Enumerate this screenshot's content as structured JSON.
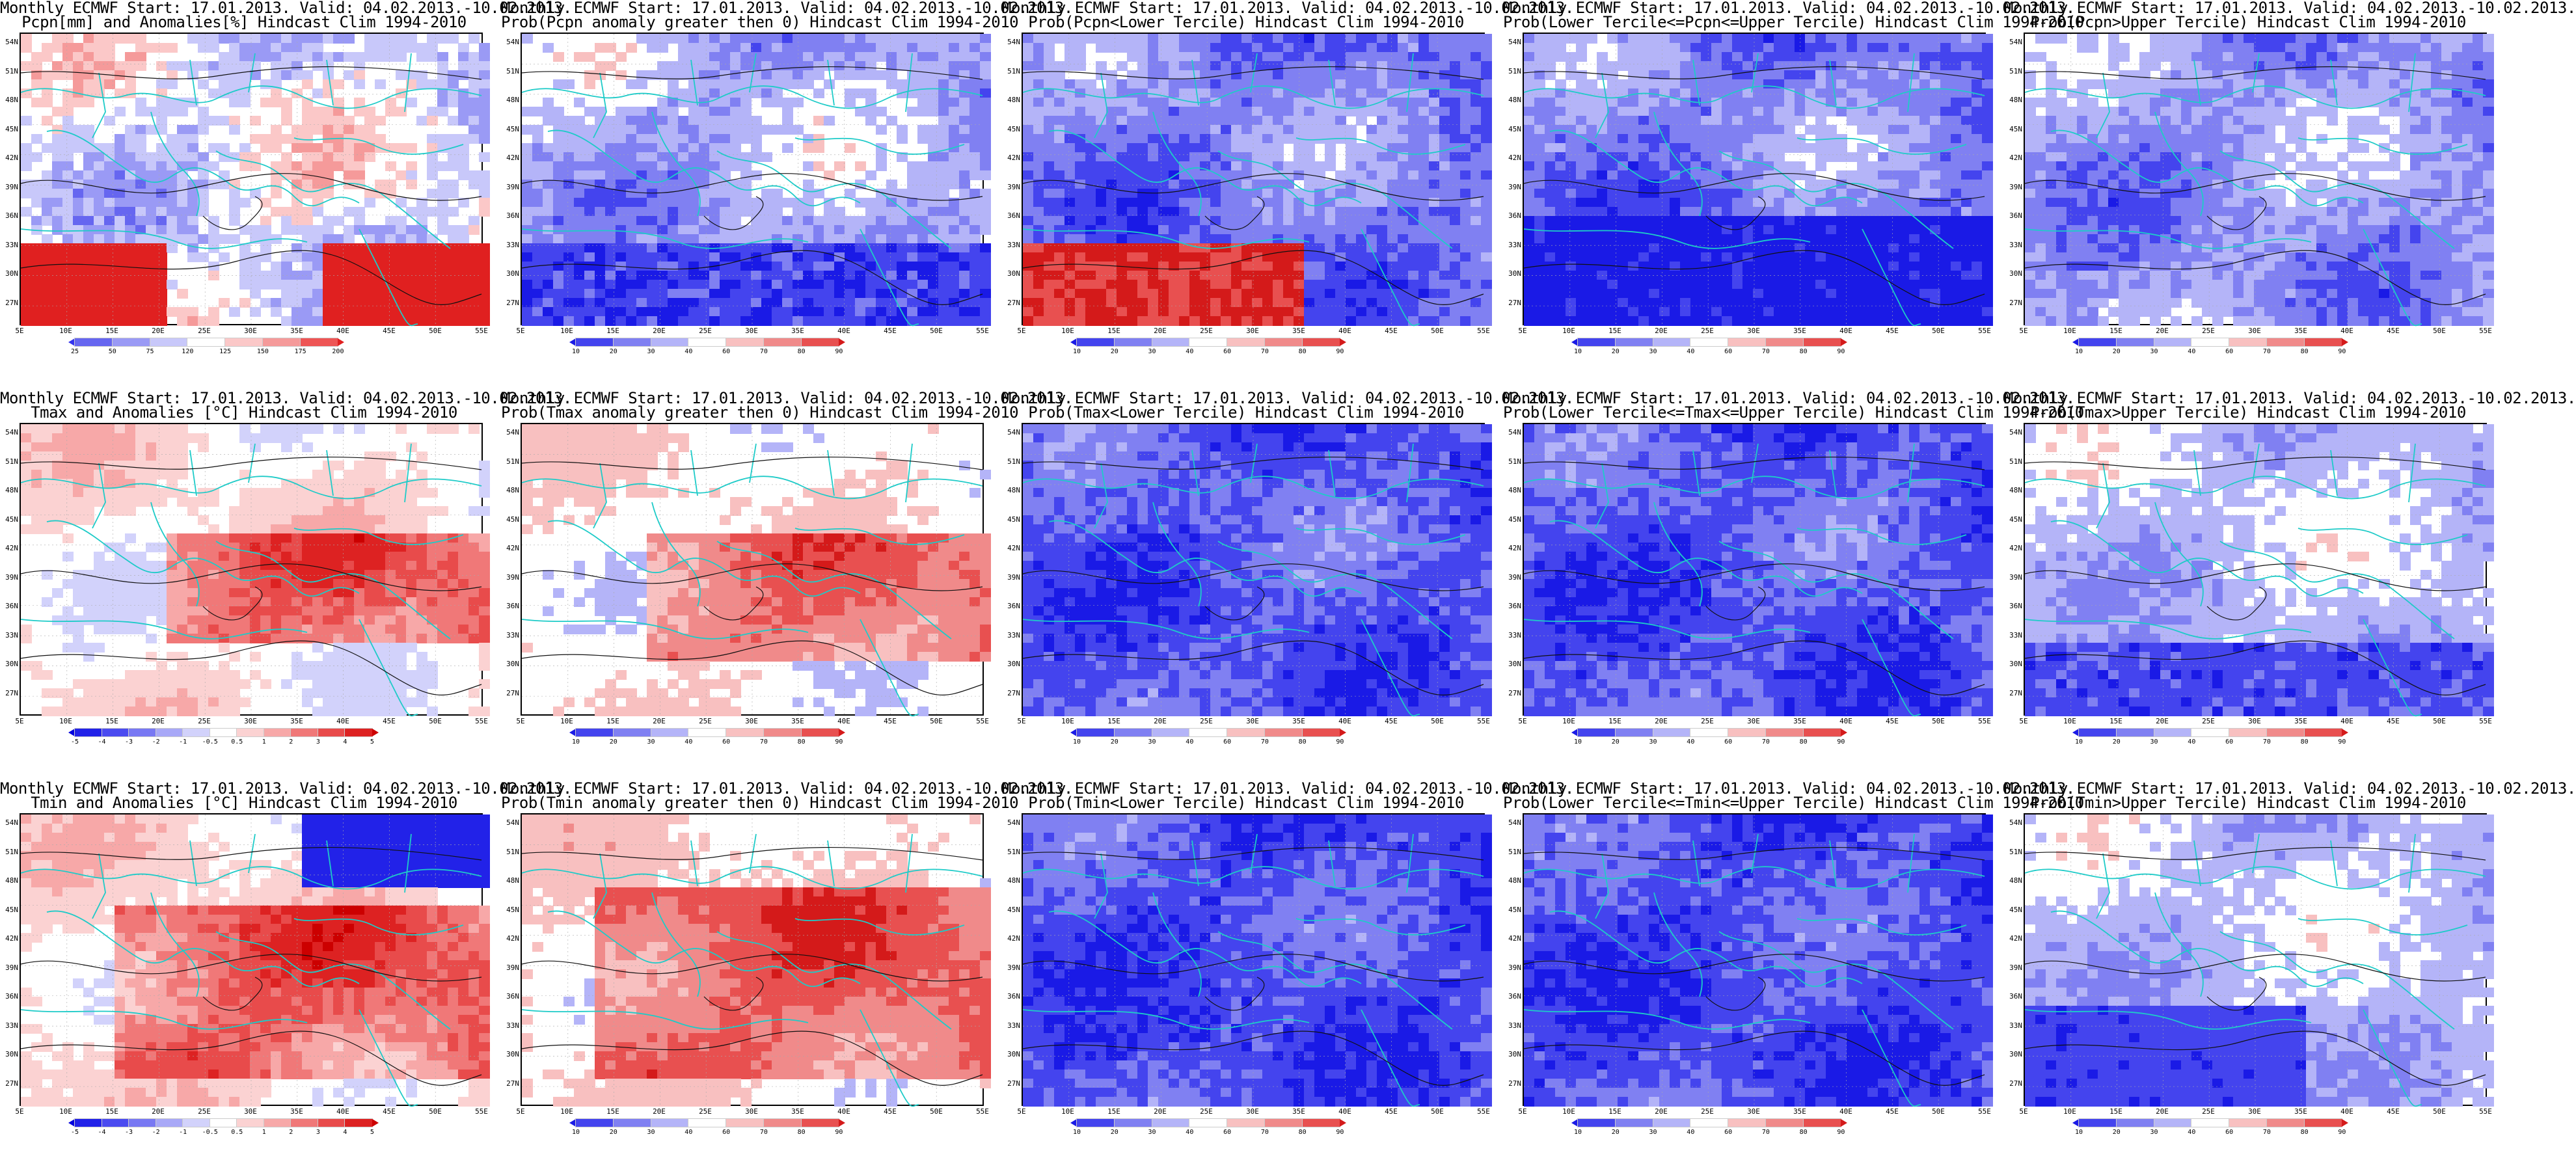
{
  "panels": [
    {
      "title1": "Monthly ECMWF Start: 17.01.2013. Valid: 04.02.2013.-10.02.2013.",
      "title2": "Pcpn[mm] and Anomalies[%] Hindcast Clim 1994-2010",
      "scale": "pcpn",
      "pattern": "pcpnanom"
    },
    {
      "title1": "Monthly ECMWF Start: 17.01.2013. Valid: 04.02.2013.-10.02.2013.",
      "title2": "Prob(Pcpn anomaly greater then 0) Hindcast Clim 1994-2010",
      "scale": "prob",
      "pattern": "pcpnprob"
    },
    {
      "title1": "Monthly ECMWF Start: 17.01.2013. Valid: 04.02.2013.-10.02.2013.",
      "title2": "Prob(Pcpn<Lower Tercile) Hindcast Clim 1994-2010",
      "scale": "prob",
      "pattern": "pcpnlow"
    },
    {
      "title1": "Monthly ECMWF Start: 17.01.2013. Valid: 04.02.2013.-10.02.2013.",
      "title2": "Prob(Lower Tercile<=Pcpn<=Upper Tercile) Hindcast Clim 1994-2010",
      "scale": "prob",
      "pattern": "pcpnmid"
    },
    {
      "title1": "Monthly ECMWF Start: 17.01.2013. Valid: 04.02.2013.-10.02.2013.",
      "title2": "Prob(Pcpn>Upper Tercile) Hindcast Clim 1994-2010",
      "scale": "prob",
      "pattern": "pcpnup"
    },
    {
      "title1": "Monthly ECMWF Start: 17.01.2013. Valid: 04.02.2013.-10.02.2013.",
      "title2": "Tmax and Anomalies [°C] Hindcast Clim 1994-2010",
      "scale": "temp",
      "pattern": "tmaxanom"
    },
    {
      "title1": "Monthly ECMWF Start: 17.01.2013. Valid: 04.02.2013.-10.02.2013.",
      "title2": "Prob(Tmax anomaly greater then 0) Hindcast Clim 1994-2010",
      "scale": "prob",
      "pattern": "tmaxprob"
    },
    {
      "title1": "Monthly ECMWF Start: 17.01.2013. Valid: 04.02.2013.-10.02.2013.",
      "title2": "Prob(Tmax<Lower Tercile) Hindcast Clim 1994-2010",
      "scale": "prob",
      "pattern": "tmaxlow"
    },
    {
      "title1": "Monthly ECMWF Start: 17.01.2013. Valid: 04.02.2013.-10.02.2013.",
      "title2": "Prob(Lower Tercile<=Tmax<=Upper Tercile) Hindcast Clim 1994-2010",
      "scale": "prob",
      "pattern": "tmaxmid"
    },
    {
      "title1": "Monthly ECMWF Start: 17.01.2013. Valid: 04.02.2013.-10.02.2013.",
      "title2": "Prob(Tmax>Upper Tercile) Hindcast Clim 1994-2010",
      "scale": "prob",
      "pattern": "tmaxup"
    },
    {
      "title1": "Monthly ECMWF Start: 17.01.2013. Valid: 04.02.2013.-10.02.2013.",
      "title2": "Tmin and Anomalies [°C] Hindcast Clim 1994-2010",
      "scale": "temp",
      "pattern": "tminanom"
    },
    {
      "title1": "Monthly ECMWF Start: 17.01.2013. Valid: 04.02.2013.-10.02.2013.",
      "title2": "Prob(Tmin anomaly greater then 0) Hindcast Clim 1994-2010",
      "scale": "prob",
      "pattern": "tminprob"
    },
    {
      "title1": "Monthly ECMWF Start: 17.01.2013. Valid: 04.02.2013.-10.02.2013.",
      "title2": "Prob(Tmin<Lower Tercile) Hindcast Clim 1994-2010",
      "scale": "prob",
      "pattern": "tminlow"
    },
    {
      "title1": "Monthly ECMWF Start: 17.01.2013. Valid: 04.02.2013.-10.02.2013.",
      "title2": "Prob(Lower Tercile<=Tmin<=Upper Tercile) Hindcast Clim 1994-2010",
      "scale": "prob",
      "pattern": "tminmid"
    },
    {
      "title1": "Monthly ECMWF Start: 17.01.2013. Valid: 04.02.2013.-10.02.2013.",
      "title2": "Prob(Tmin>Upper Tercile) Hindcast Clim 1994-2010",
      "scale": "prob",
      "pattern": "tminup"
    }
  ],
  "lat_labels": [
    "54N",
    "51N",
    "48N",
    "45N",
    "42N",
    "39N",
    "36N",
    "33N",
    "30N",
    "27N"
  ],
  "lon_labels": [
    "5E",
    "10E",
    "15E",
    "20E",
    "25E",
    "30E",
    "35E",
    "40E",
    "45E",
    "50E",
    "55E"
  ],
  "scales": {
    "pcpn": {
      "labels": [
        "25",
        "50",
        "75",
        "120",
        "125",
        "150",
        "175",
        "200"
      ],
      "colors": [
        "#3333ee",
        "#6666f0",
        "#9a9af5",
        "#c8c8fa",
        "#ffffff",
        "#fbc8c8",
        "#f59a9a",
        "#ee5555",
        "#e02020"
      ]
    },
    "prob": {
      "labels": [
        "10",
        "20",
        "30",
        "40",
        "60",
        "70",
        "80",
        "90"
      ],
      "colors": [
        "#1a1ae6",
        "#4444ee",
        "#8080f2",
        "#b4b4f8",
        "#ffffff",
        "#f8c0c0",
        "#f08a8a",
        "#e85050",
        "#d41a1a"
      ]
    },
    "temp": {
      "labels": [
        "-5",
        "-4",
        "-3",
        "-2",
        "-1",
        "-0.5",
        "0.5",
        "1",
        "2",
        "3",
        "4",
        "5"
      ],
      "colors": [
        "#0000dd",
        "#2222e8",
        "#4b4bf0",
        "#7878f3",
        "#a8a8f7",
        "#d2d2fb",
        "#ffffff",
        "#fbd2d2",
        "#f7a8a8",
        "#f07878",
        "#e84b4b",
        "#dd2222",
        "#cc0000"
      ]
    }
  },
  "palette": {
    "cyan": "#1ecbc8",
    "contour": "#111111",
    "grid": "#aaaaaa"
  }
}
